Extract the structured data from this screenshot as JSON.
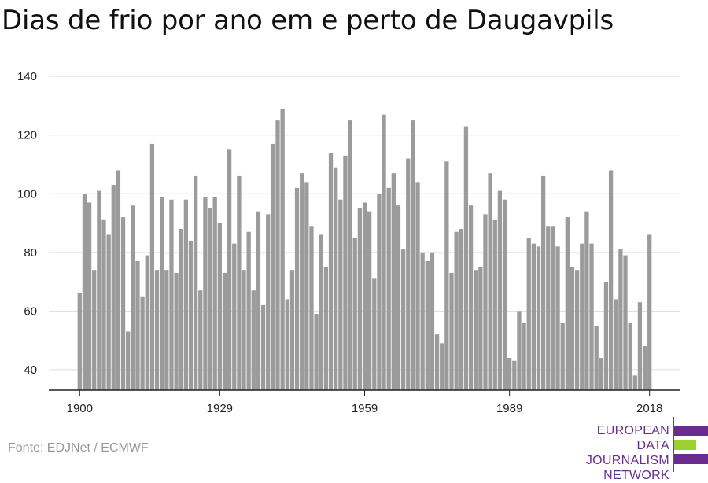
{
  "header": {
    "title": "Dias de frio por ano em e perto de Daugavpils"
  },
  "footer": {
    "source": "Fonte: EDJNet / ECMWF"
  },
  "logo": {
    "lines": [
      "EUROPEAN",
      "DATA JOURNALISM",
      "NETWORK"
    ],
    "text_color": "#6a2c91",
    "bar_colors": [
      "#6a2c91",
      "#9ad12c",
      "#6a2c91"
    ]
  },
  "chart_data": {
    "type": "bar",
    "title": "Dias de frio por ano em e perto de Daugavpils",
    "xlabel": "",
    "ylabel": "",
    "ylim": [
      33,
      143
    ],
    "yticks": [
      40,
      60,
      80,
      100,
      120,
      140
    ],
    "xticks": [
      1900,
      1929,
      1959,
      1989,
      2018
    ],
    "grid": true,
    "bar_color": "#9b9b9b",
    "x": [
      1900,
      1901,
      1902,
      1903,
      1904,
      1905,
      1906,
      1907,
      1908,
      1909,
      1910,
      1911,
      1912,
      1913,
      1914,
      1915,
      1916,
      1917,
      1918,
      1919,
      1920,
      1921,
      1922,
      1923,
      1924,
      1925,
      1926,
      1927,
      1928,
      1929,
      1930,
      1931,
      1932,
      1933,
      1934,
      1935,
      1936,
      1937,
      1938,
      1939,
      1940,
      1941,
      1942,
      1943,
      1944,
      1945,
      1946,
      1947,
      1948,
      1949,
      1950,
      1951,
      1952,
      1953,
      1954,
      1955,
      1956,
      1957,
      1958,
      1959,
      1960,
      1961,
      1962,
      1963,
      1964,
      1965,
      1966,
      1967,
      1968,
      1969,
      1970,
      1971,
      1972,
      1973,
      1974,
      1975,
      1976,
      1977,
      1978,
      1979,
      1980,
      1981,
      1982,
      1983,
      1984,
      1985,
      1986,
      1987,
      1988,
      1989,
      1990,
      1991,
      1992,
      1993,
      1994,
      1995,
      1996,
      1997,
      1998,
      1999,
      2000,
      2001,
      2002,
      2003,
      2004,
      2005,
      2006,
      2007,
      2008,
      2009,
      2010,
      2011,
      2012,
      2013,
      2014,
      2015,
      2016,
      2017,
      2018
    ],
    "values": [
      66,
      100,
      97,
      74,
      101,
      91,
      86,
      103,
      108,
      92,
      53,
      96,
      77,
      65,
      79,
      117,
      74,
      99,
      74,
      98,
      73,
      88,
      98,
      84,
      106,
      67,
      99,
      95,
      99,
      90,
      73,
      115,
      83,
      106,
      74,
      87,
      67,
      94,
      62,
      93,
      117,
      125,
      129,
      64,
      74,
      102,
      107,
      104,
      89,
      59,
      86,
      75,
      114,
      109,
      98,
      113,
      125,
      85,
      95,
      97,
      94,
      71,
      100,
      127,
      102,
      107,
      96,
      81,
      112,
      125,
      104,
      80,
      77,
      80,
      52,
      49,
      111,
      73,
      87,
      88,
      123,
      96,
      74,
      75,
      93,
      107,
      91,
      101,
      98,
      44,
      43,
      60,
      56,
      85,
      83,
      82,
      106,
      89,
      89,
      82,
      56,
      92,
      75,
      74,
      83,
      94,
      83,
      55,
      44,
      70,
      108,
      64,
      81,
      79,
      56,
      38,
      63,
      48,
      86
    ]
  }
}
